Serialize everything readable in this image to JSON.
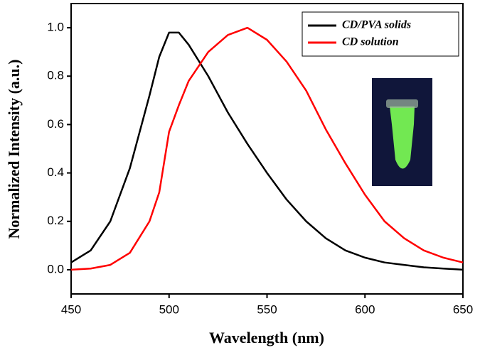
{
  "chart_data": {
    "type": "line",
    "x_label": "Wavelength (nm)",
    "y_label": "Normalized Intensity (a.u.)",
    "x": [
      450,
      460,
      470,
      480,
      490,
      495,
      500,
      505,
      510,
      520,
      530,
      540,
      550,
      560,
      570,
      580,
      590,
      600,
      610,
      620,
      630,
      640,
      650
    ],
    "series": [
      {
        "name": "CD/PVA solids",
        "color": "#000000",
        "values": [
          0.03,
          0.08,
          0.2,
          0.42,
          0.72,
          0.88,
          0.98,
          0.98,
          0.93,
          0.8,
          0.65,
          0.52,
          0.4,
          0.29,
          0.2,
          0.13,
          0.08,
          0.05,
          0.03,
          0.02,
          0.01,
          0.005,
          0.0
        ]
      },
      {
        "name": "CD solution",
        "color": "#ff0000",
        "values": [
          0.0,
          0.005,
          0.02,
          0.07,
          0.2,
          0.32,
          0.57,
          0.68,
          0.78,
          0.9,
          0.97,
          1.0,
          0.95,
          0.86,
          0.74,
          0.58,
          0.44,
          0.31,
          0.2,
          0.13,
          0.08,
          0.05,
          0.03
        ]
      }
    ],
    "xlim": [
      450,
      650
    ],
    "ylim": [
      -0.1,
      1.1
    ],
    "xticks": [
      450,
      500,
      550,
      600,
      650
    ],
    "yticks": [
      {
        "value": 0,
        "label": "0.0"
      },
      0.2,
      0.4,
      0.6,
      0.8,
      {
        "value": 1,
        "label": "1.0"
      }
    ],
    "legend": "upper right"
  }
}
